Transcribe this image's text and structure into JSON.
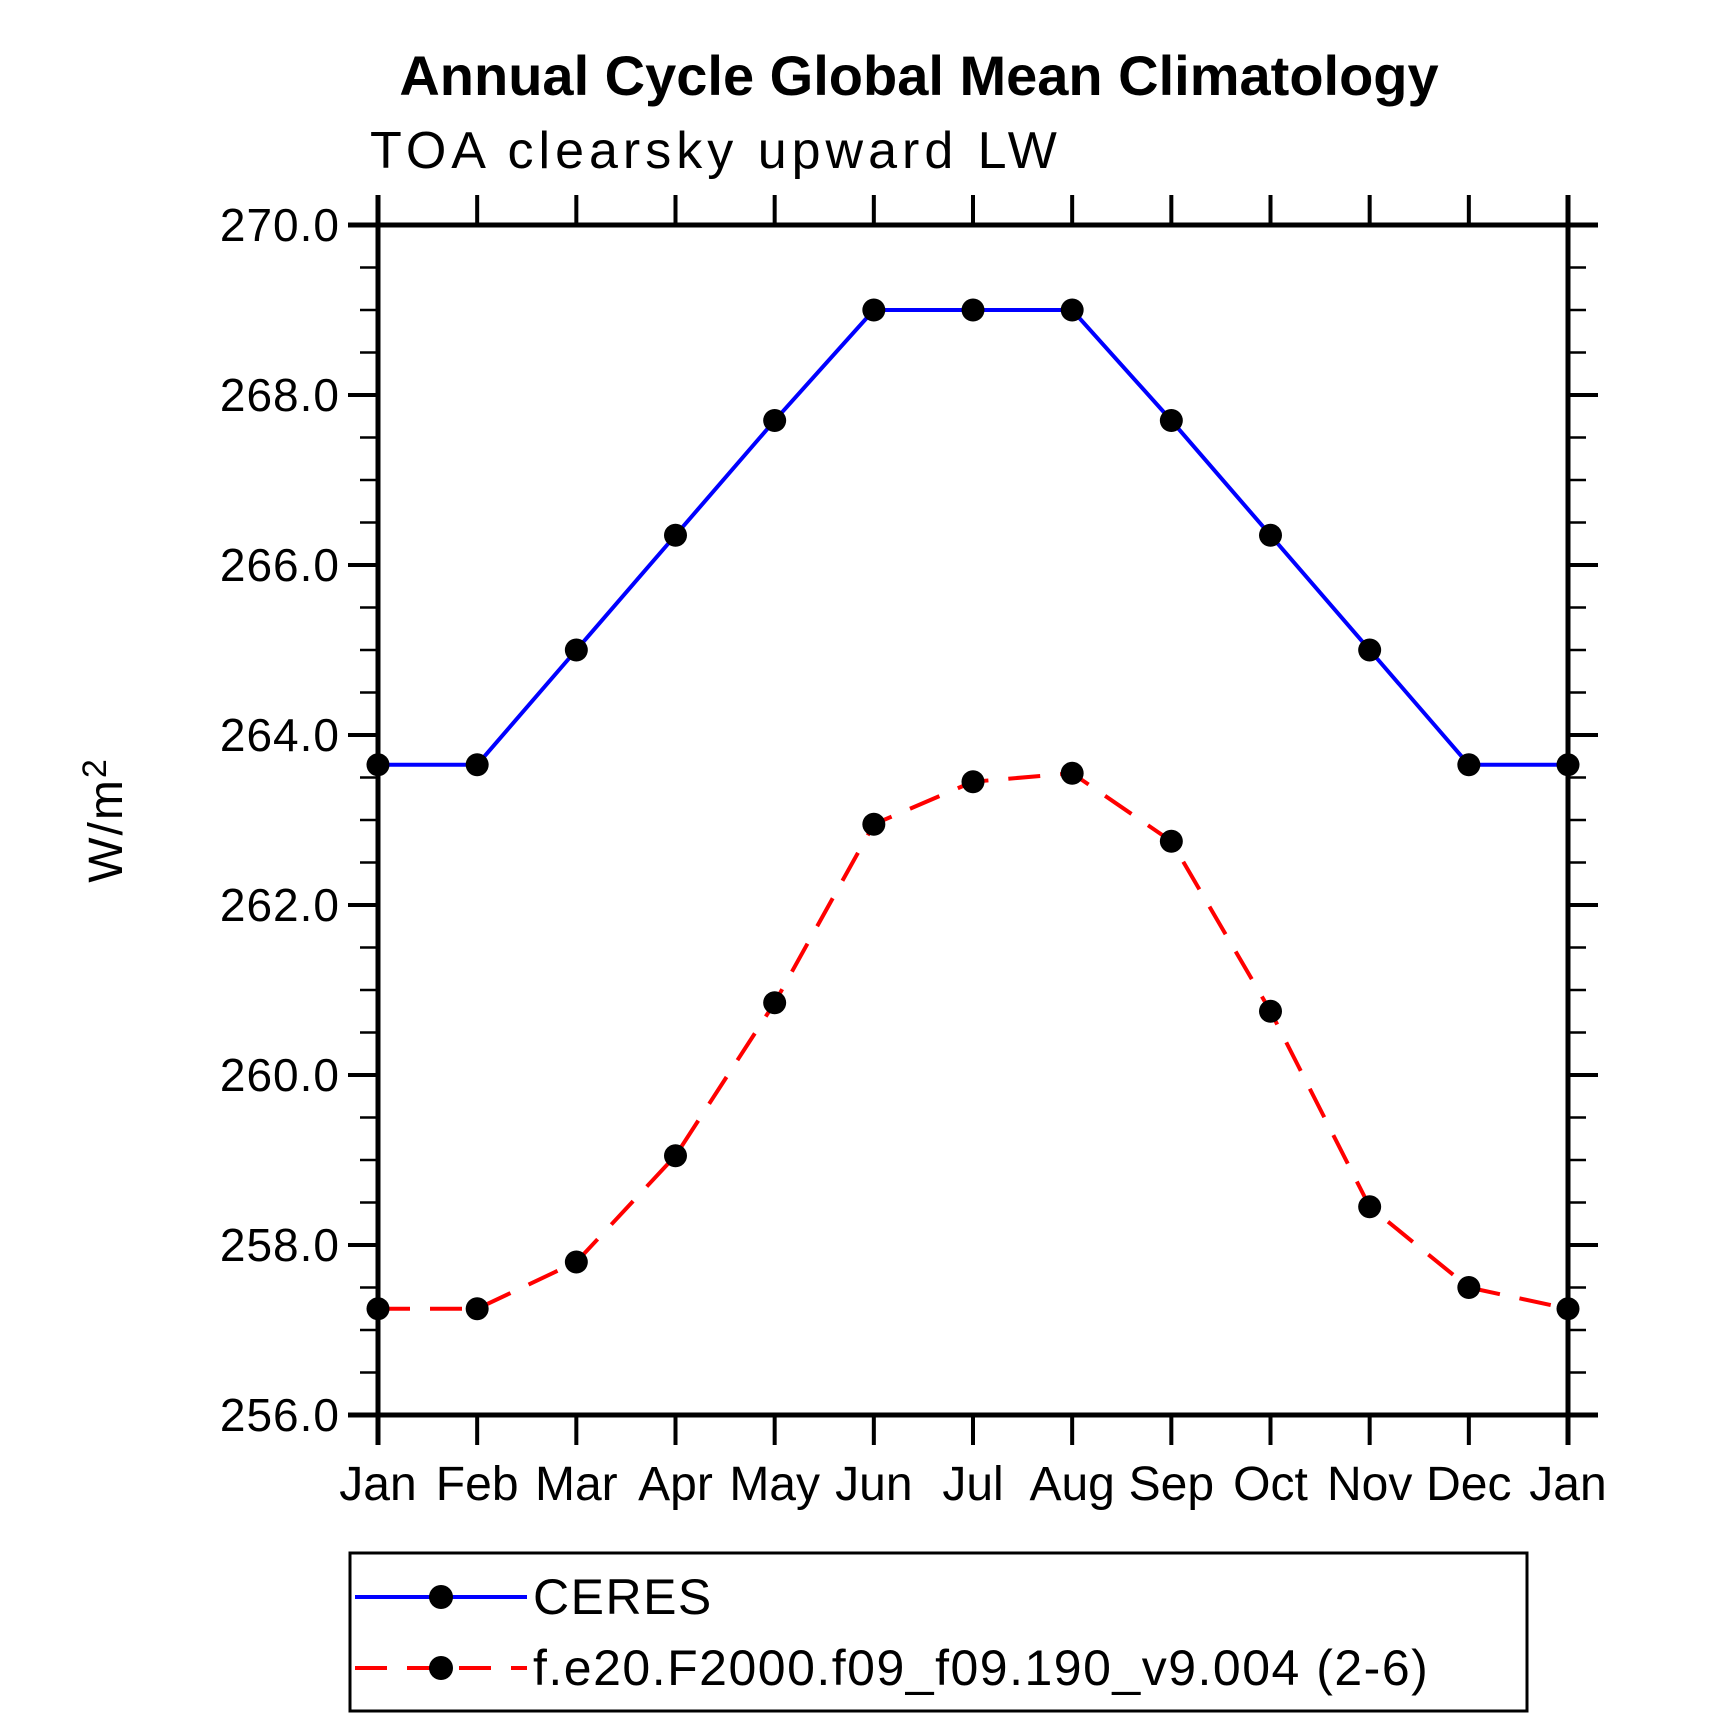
{
  "title": "Annual Cycle Global Mean Climatology",
  "subtitle": "TOA clearsky upward LW",
  "chart_data": {
    "type": "line",
    "title": "Annual Cycle Global Mean Climatology",
    "subtitle": "TOA clearsky upward LW",
    "ylabel_base": "W/m",
    "ylabel_sup": "2",
    "x_categories": [
      "Jan",
      "Feb",
      "Mar",
      "Apr",
      "May",
      "Jun",
      "Jul",
      "Aug",
      "Sep",
      "Oct",
      "Nov",
      "Dec",
      "Jan"
    ],
    "ylim": [
      256.0,
      270.0
    ],
    "ytick_step": 2.0,
    "yminor_step": 0.5,
    "ytick_labels": [
      "256.0",
      "258.0",
      "260.0",
      "262.0",
      "264.0",
      "266.0",
      "268.0",
      "270.0"
    ],
    "grid": false,
    "legend_position": "bottom",
    "axis_color": "#000000",
    "series": [
      {
        "name": "CERES",
        "color": "#0000ff",
        "line_style": "solid",
        "marker": "circle",
        "marker_color": "#000000",
        "values": [
          263.65,
          263.65,
          265.0,
          266.35,
          267.7,
          269.0,
          269.0,
          269.0,
          267.7,
          266.35,
          265.0,
          263.65,
          263.65
        ]
      },
      {
        "name": "f.e20.F2000.f09_f09.190_v9.004 (2-6)",
        "color": "#ff0000",
        "line_style": "dashed",
        "marker": "circle",
        "marker_color": "#000000",
        "values": [
          257.25,
          257.25,
          257.8,
          259.05,
          260.85,
          262.95,
          263.45,
          263.55,
          262.75,
          260.75,
          258.45,
          257.5,
          257.25
        ]
      }
    ]
  }
}
